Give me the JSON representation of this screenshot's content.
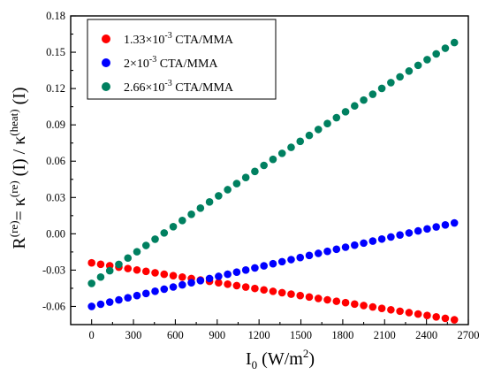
{
  "chart_data": {
    "type": "scatter",
    "xlabel": {
      "base": "I",
      "sub": "0",
      "rest": " (W/m",
      "sup": "2",
      "close": ")"
    },
    "ylabel": {
      "p1": "R",
      "s1": "(re)",
      "p2": "= κ",
      "s2": "(re)",
      "p3": " (I) / κ",
      "s3": "(heat)",
      "p4": " (I)"
    },
    "xlim": [
      -150,
      2700
    ],
    "ylim": [
      -0.075,
      0.18
    ],
    "xticks": [
      "0",
      "300",
      "600",
      "900",
      "1200",
      "1500",
      "1800",
      "2100",
      "2400",
      "2700"
    ],
    "xtick_values": [
      0,
      300,
      600,
      900,
      1200,
      1500,
      1800,
      2100,
      2400,
      2700
    ],
    "yticks": [
      "-0.06",
      "-0.03",
      "0.00",
      "0.03",
      "0.06",
      "0.09",
      "0.12",
      "0.15",
      "0.18"
    ],
    "ytick_values": [
      -0.06,
      -0.03,
      0.0,
      0.03,
      0.06,
      0.09,
      0.12,
      0.15,
      0.18
    ],
    "legend_position": "top-left",
    "x": {
      "start": 0,
      "step": 65,
      "count": 41
    },
    "series": [
      {
        "name": "1.33×10-3 CTA/MMA",
        "legend": {
          "pre": "1.33×10",
          "sup": "-3",
          "post": " CTA/MMA"
        },
        "color": "#ff0000",
        "y_start": -0.024,
        "y_end": -0.071,
        "curve": 0.0
      },
      {
        "name": "2×10-3 CTA/MMA",
        "legend": {
          "pre": "2×10",
          "sup": "-3",
          "post": " CTA/MMA"
        },
        "color": "#0000ff",
        "y_start": -0.06,
        "y_end": 0.009,
        "curve": 0.003
      },
      {
        "name": "2.66×10-3 CTA/MMA",
        "legend": {
          "pre": "2.66×10",
          "sup": "-3",
          "post": " CTA/MMA"
        },
        "color": "#008060",
        "y_start": -0.041,
        "y_end": 0.158,
        "curve": 0.012
      }
    ]
  }
}
